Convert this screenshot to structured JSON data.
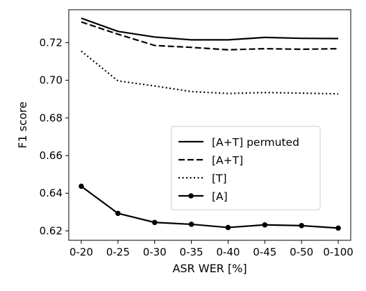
{
  "chart_data": {
    "type": "line",
    "title": "",
    "xlabel": "ASR WER [%]",
    "ylabel": "F1 score",
    "categories": [
      "0-20",
      "0-25",
      "0-30",
      "0-35",
      "0-40",
      "0-45",
      "0-50",
      "0-100"
    ],
    "ylim": [
      0.615,
      0.7375
    ],
    "yticks": [
      0.62,
      0.64,
      0.66,
      0.68,
      0.7,
      0.72
    ],
    "ytick_labels": [
      "0.62",
      "0.64",
      "0.66",
      "0.68",
      "0.70",
      "0.72"
    ],
    "grid": false,
    "legend_position": "center-right",
    "series": [
      {
        "name": "[A+T] permuted",
        "style": "solid",
        "markers": false,
        "color": "#000000",
        "values": [
          0.733,
          0.726,
          0.723,
          0.7215,
          0.7215,
          0.7228,
          0.7223,
          0.7222
        ]
      },
      {
        "name": "[A+T]",
        "style": "dashed",
        "markers": false,
        "color": "#000000",
        "values": [
          0.731,
          0.7245,
          0.7185,
          0.7175,
          0.7162,
          0.7168,
          0.7165,
          0.7168
        ]
      },
      {
        "name": "[T]",
        "style": "dotted",
        "markers": false,
        "color": "#000000",
        "values": [
          0.7155,
          0.6997,
          0.697,
          0.694,
          0.693,
          0.6935,
          0.6932,
          0.6928
        ]
      },
      {
        "name": "[A]",
        "style": "solid",
        "markers": true,
        "color": "#000000",
        "values": [
          0.6437,
          0.6293,
          0.6245,
          0.6235,
          0.6218,
          0.6232,
          0.6228,
          0.6215
        ]
      }
    ]
  }
}
